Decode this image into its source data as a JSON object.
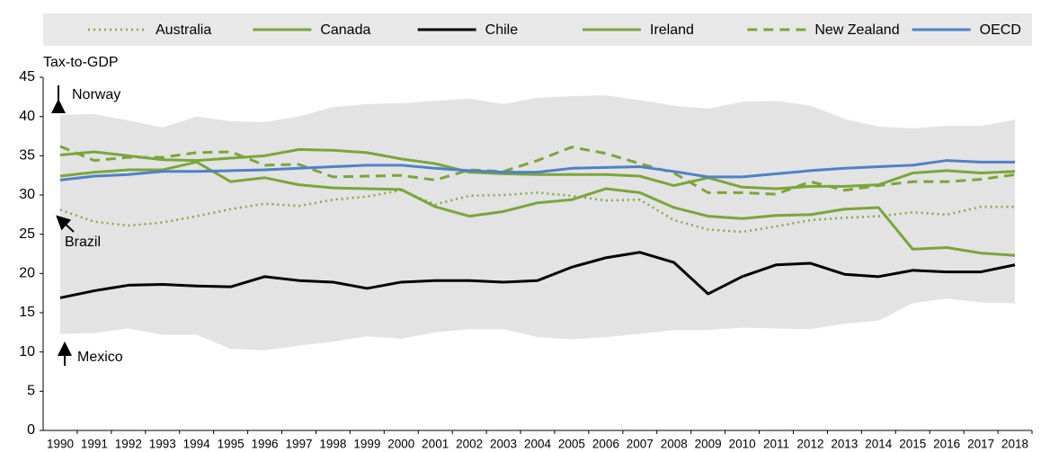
{
  "chart_data": {
    "type": "line",
    "y_label": "Tax-to-GDP",
    "categories": [
      "1990",
      "1991",
      "1992",
      "1993",
      "1994",
      "1995",
      "1996",
      "1997",
      "1998",
      "1999",
      "2000",
      "2001",
      "2002",
      "2003",
      "2004",
      "2005",
      "2006",
      "2007",
      "2008",
      "2009",
      "2010",
      "2011",
      "2012",
      "2013",
      "2014",
      "2015",
      "2016",
      "2017",
      "2018"
    ],
    "ylim": [
      0,
      45
    ],
    "yticks": [
      0,
      5,
      10,
      15,
      20,
      25,
      30,
      35,
      40,
      45
    ],
    "range": {
      "color": "#e3e3e3",
      "upper": [
        40.2,
        40.3,
        39.5,
        38.6,
        40.0,
        39.4,
        39.3,
        40.0,
        41.2,
        41.6,
        41.7,
        42.0,
        42.3,
        41.6,
        42.4,
        42.6,
        42.7,
        42.1,
        41.4,
        41.0,
        41.9,
        42.0,
        41.4,
        39.7,
        38.7,
        38.5,
        38.8,
        38.8,
        39.6
      ],
      "lower": [
        12.3,
        12.4,
        13.0,
        12.2,
        12.2,
        10.4,
        10.2,
        10.8,
        11.3,
        12.0,
        11.7,
        12.5,
        12.9,
        12.9,
        11.9,
        11.6,
        11.9,
        12.3,
        12.8,
        12.8,
        13.1,
        13.0,
        12.9,
        13.6,
        14.0,
        16.2,
        16.8,
        16.3,
        16.2
      ]
    },
    "series": [
      {
        "name": "Australia",
        "color": "#7fab3f",
        "style": "dotted",
        "values": [
          28.1,
          26.6,
          26.1,
          26.5,
          27.3,
          28.2,
          28.9,
          28.6,
          29.4,
          29.8,
          30.6,
          28.8,
          29.9,
          30.0,
          30.3,
          29.9,
          29.3,
          29.4,
          26.8,
          25.6,
          25.3,
          26.0,
          26.8,
          27.1,
          27.3,
          27.8,
          27.5,
          28.5,
          28.5
        ]
      },
      {
        "name": "Canada",
        "color": "#7aa63a",
        "style": "solid",
        "values": [
          35.1,
          35.5,
          35.0,
          34.5,
          34.4,
          34.7,
          35.0,
          35.8,
          35.7,
          35.4,
          34.6,
          34.0,
          32.9,
          32.7,
          32.6,
          32.6,
          32.6,
          32.4,
          31.2,
          32.2,
          31.0,
          30.8,
          31.1,
          31.1,
          31.3,
          32.8,
          33.1,
          32.8,
          33.0
        ]
      },
      {
        "name": "Chile",
        "color": "#000000",
        "style": "solid",
        "values": [
          16.9,
          17.8,
          18.5,
          18.6,
          18.4,
          18.3,
          19.6,
          19.1,
          18.9,
          18.1,
          18.9,
          19.1,
          19.1,
          18.9,
          19.1,
          20.8,
          22.0,
          22.7,
          21.4,
          17.4,
          19.6,
          21.1,
          21.3,
          19.9,
          19.6,
          20.4,
          20.2,
          20.2,
          21.1
        ]
      },
      {
        "name": "Ireland",
        "color": "#7aa63a",
        "style": "solid",
        "values": [
          32.4,
          32.9,
          33.2,
          33.2,
          34.2,
          31.7,
          32.2,
          31.3,
          30.9,
          30.8,
          30.7,
          28.5,
          27.3,
          27.9,
          29.0,
          29.4,
          30.8,
          30.3,
          28.4,
          27.3,
          27.0,
          27.4,
          27.5,
          28.2,
          28.4,
          23.1,
          23.3,
          22.6,
          22.3
        ]
      },
      {
        "name": "New Zealand",
        "color": "#7aa63a",
        "style": "dashed",
        "values": [
          36.2,
          34.4,
          34.8,
          34.8,
          35.4,
          35.5,
          33.8,
          33.9,
          32.3,
          32.4,
          32.5,
          31.9,
          33.2,
          33.0,
          34.4,
          36.1,
          35.3,
          34.0,
          32.8,
          30.3,
          30.3,
          30.1,
          31.7,
          30.6,
          31.2,
          31.7,
          31.7,
          32.0,
          32.6
        ]
      },
      {
        "name": "OECD",
        "color": "#4f81c7",
        "style": "solid",
        "values": [
          31.9,
          32.4,
          32.6,
          33.0,
          33.0,
          33.1,
          33.2,
          33.4,
          33.6,
          33.8,
          33.8,
          33.4,
          33.1,
          32.9,
          32.9,
          33.4,
          33.5,
          33.6,
          33.0,
          32.3,
          32.3,
          32.7,
          33.1,
          33.4,
          33.6,
          33.8,
          34.4,
          34.2,
          34.2
        ]
      }
    ],
    "annotations": [
      {
        "text": "Norway"
      },
      {
        "text": "Brazil"
      },
      {
        "text": "Mexico"
      }
    ]
  }
}
